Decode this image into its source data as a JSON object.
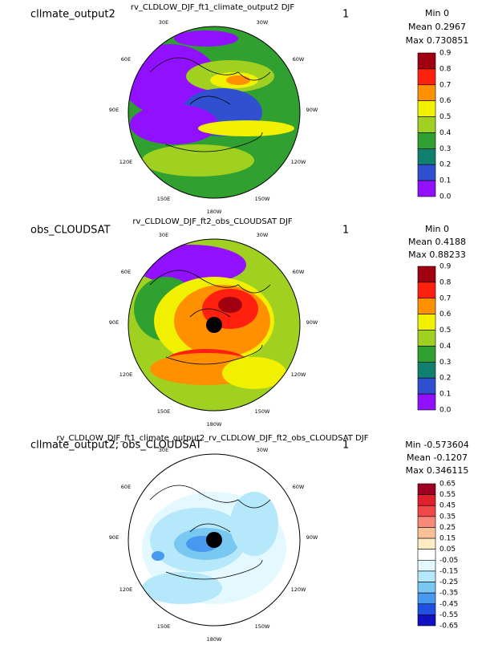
{
  "panels": [
    {
      "label": "cllmate_output2",
      "title": "rv_CLDLOW_DJF_ft1_climate_output2  DJF",
      "number": "1",
      "stats": [
        "Min 0",
        "Mean 0.2967",
        "Max 0.730851"
      ],
      "longitudes": [
        "30E",
        "30W",
        "60E",
        "60W",
        "90E",
        "90W",
        "120E",
        "120W",
        "150E",
        "150W",
        "180W"
      ],
      "colorbar": {
        "labels": [
          "0.9",
          "0.8",
          "0.7",
          "0.6",
          "0.5",
          "0.4",
          "0.3",
          "0.2",
          "0.1",
          "0.0"
        ],
        "colors": [
          "#a00010",
          "#ff2010",
          "#ff9000",
          "#f0f000",
          "#a0d020",
          "#30a030",
          "#108070",
          "#3050d0",
          "#9010ff"
        ]
      }
    },
    {
      "label": "obs_CLOUDSAT",
      "title": "rv_CLDLOW_DJF_ft2_obs_CLOUDSAT  DJF",
      "number": "1",
      "stats": [
        "Min 0",
        "Mean 0.4188",
        "Max 0.88233"
      ],
      "longitudes": [
        "30E",
        "30W",
        "60E",
        "60W",
        "90E",
        "90W",
        "120E",
        "120W",
        "150E",
        "150W",
        "180W"
      ],
      "colorbar": {
        "labels": [
          "0.9",
          "0.8",
          "0.7",
          "0.6",
          "0.5",
          "0.4",
          "0.3",
          "0.2",
          "0.1",
          "0.0"
        ],
        "colors": [
          "#a00010",
          "#ff2010",
          "#ff9000",
          "#f0f000",
          "#a0d020",
          "#30a030",
          "#108070",
          "#3050d0",
          "#9010ff"
        ]
      }
    },
    {
      "label": "cllmate_output2; obs_CLOUDSAT",
      "title": "rv_CLDLOW_DJF_ft1_climate_output2_rv_CLDLOW_DJF_ft2_obs_CLOUDSAT  DJF",
      "number": "1",
      "stats": [
        "Min -0.573604",
        "Mean -0.1207",
        "Max 0.346115"
      ],
      "longitudes": [
        "30E",
        "30W",
        "60E",
        "60W",
        "90E",
        "90W",
        "120E",
        "120W",
        "150E",
        "150W",
        "180W"
      ],
      "colorbar": {
        "labels": [
          "0.65",
          "0.55",
          "0.45",
          "0.35",
          "0.25",
          "0.15",
          "0.05",
          "-0.05",
          "-0.15",
          "-0.25",
          "-0.35",
          "-0.45",
          "-0.55",
          "-0.65"
        ],
        "colors": [
          "#a00020",
          "#e0202a",
          "#f04848",
          "#f88878",
          "#fcc098",
          "#fdebc4",
          "#ffffff",
          "#e4f8ff",
          "#b4e8fa",
          "#78c8f2",
          "#4898f0",
          "#2050e4",
          "#1010c0"
        ]
      }
    }
  ]
}
